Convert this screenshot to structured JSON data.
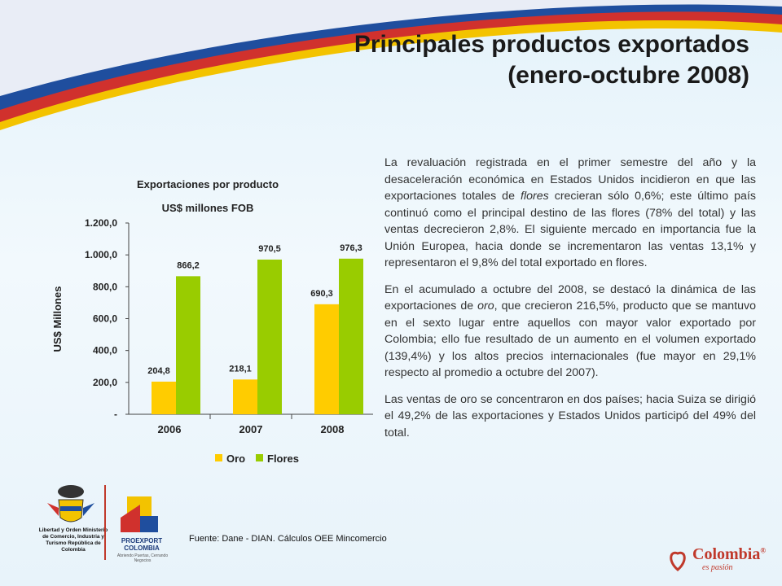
{
  "slide": {
    "title_line1": "Principales productos exportados",
    "title_line2": "(enero-octubre 2008)"
  },
  "chart_data": {
    "type": "bar",
    "title": "Exportaciones por producto",
    "subtitle": "US$ millones FOB",
    "categories": [
      "2006",
      "2007",
      "2008"
    ],
    "series": [
      {
        "name": "Oro",
        "values": [
          204.8,
          218.1,
          690.3
        ],
        "color": "#ffcc00",
        "labels": [
          "204,8",
          "218,1",
          "690,3"
        ]
      },
      {
        "name": "Flores",
        "values": [
          866.2,
          970.5,
          976.3
        ],
        "color": "#99cc00",
        "labels": [
          "866,2",
          "970,5",
          "976,3"
        ]
      }
    ],
    "ylabel": "US$ Millones",
    "ylim": [
      0,
      1200
    ],
    "yticks": [
      "-",
      "200,0",
      "400,0",
      "600,0",
      "800,0",
      "1.000,0",
      "1.200,0"
    ],
    "legend_position": "bottom",
    "grid": false
  },
  "body": {
    "p1_a": "La revaluación registrada en el primer semestre del año y la desaceleración económica en Estados Unidos incidieron en que las exportaciones totales de ",
    "p1_em": "flores",
    "p1_b": " crecieran sólo 0,6%; este último país continuó como el principal destino de las flores (78% del total) y las ventas decrecieron 2,8%. El siguiente mercado en importancia fue la Unión Europea, hacia donde se incrementaron las ventas 13,1% y representaron el 9,8% del total exportado en flores.",
    "p2_a": "En el acumulado a octubre del 2008, se destacó la dinámica de las exportaciones de ",
    "p2_em": "oro",
    "p2_b": ", que crecieron 216,5%, producto que se mantuvo en el sexto lugar entre aquellos con mayor valor exportado por Colombia; ello fue resultado de un aumento en el volumen exportado (139,4%) y los altos precios internacionales (fue mayor en 29,1% respecto al promedio a octubre del 2007).",
    "p3": "Las ventas de oro se concentraron en dos países; hacia Suiza se dirigió el 49,2% de las exportaciones y Estados Unidos participó del 49% del total."
  },
  "footer": {
    "source": "Fuente: Dane - DIAN. Cálculos OEE Mincomercio",
    "gov_text": "Libertad y Orden Ministerio de Comercio, Industria y Turismo República de Colombia",
    "proexport_line1": "PROEXPORT",
    "proexport_line2": "COLOMBIA",
    "proexport_tag": "Abriendo Puertas, Cerrando Negocios",
    "brand_word": "Colombia",
    "brand_mark": "®",
    "brand_tag": "es pasión"
  },
  "colors": {
    "swoosh_blue": "#1f4e9e",
    "swoosh_red": "#d0312d",
    "swoosh_yellow": "#f3c300"
  }
}
